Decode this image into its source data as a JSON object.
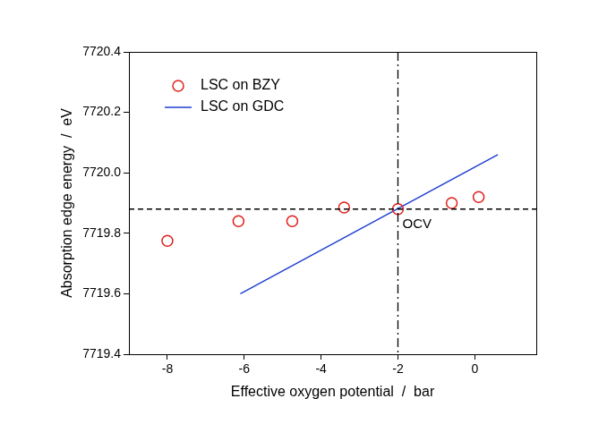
{
  "chart_data": {
    "type": "scatter",
    "x_label": "Effective oxygen potential  /  bar",
    "y_label": "Absorption edge energy  /  eV",
    "series": [
      {
        "name": "LSC on BZY",
        "type": "scatter",
        "marker": "circle",
        "color": "#e0201c",
        "x": [
          -8,
          -6.15,
          -4.75,
          -3.4,
          -2,
          -0.6,
          0.1
        ],
        "values": [
          7719.775,
          7719.84,
          7719.84,
          7719.885,
          7719.88,
          7719.9,
          7719.92
        ]
      },
      {
        "name": "LSC on GDC",
        "type": "line",
        "line_style": "solid",
        "color": "#1f3fd0",
        "x": [
          -6.1,
          0.6
        ],
        "values": [
          7719.6,
          7720.06
        ]
      }
    ],
    "xlim": [
      -9,
      1.6
    ],
    "xticks": [
      -8,
      -6,
      -4,
      -2,
      0
    ],
    "ylim": [
      7719.4,
      7720.4
    ],
    "yticks": [
      7719.4,
      7719.6,
      7719.8,
      {
        "value": 7720,
        "label": "7720.0"
      },
      7720.2,
      7720.4
    ],
    "grid": false,
    "legend": "upper left",
    "reference_lines": [
      {
        "axis": "x",
        "value": -2,
        "line_style": "dashdot"
      },
      {
        "axis": "y",
        "value": 7719.88,
        "line_style": "dashed"
      }
    ],
    "annotations": [
      {
        "text": "OCV",
        "x": -2,
        "y": 7719.88
      }
    ]
  }
}
